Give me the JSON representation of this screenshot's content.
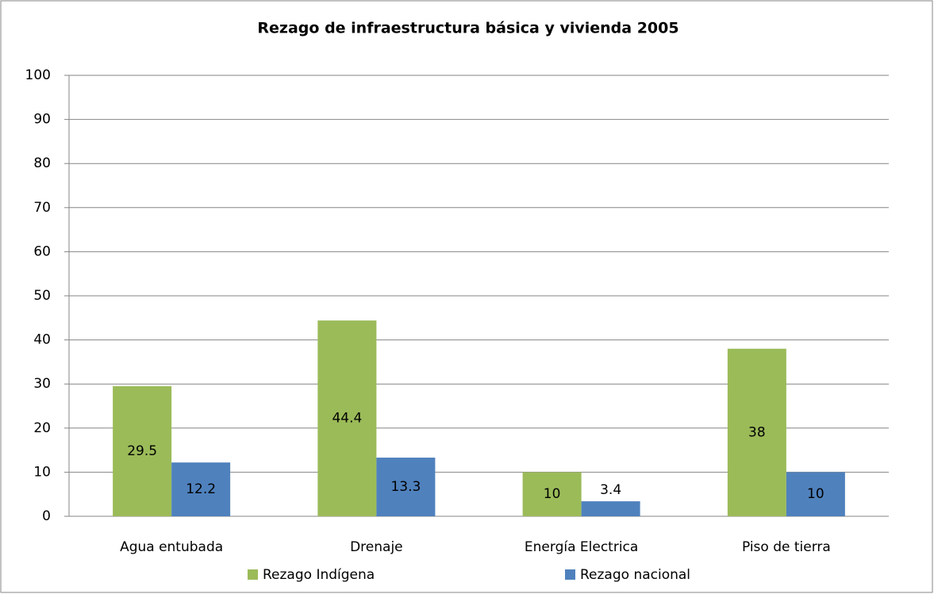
{
  "chart_data": {
    "type": "bar",
    "title": "Rezago de infraestructura básica y vivienda 2005",
    "categories": [
      "Agua entubada",
      "Drenaje",
      "Energía Electrica",
      "Piso de tierra"
    ],
    "series": [
      {
        "name": "Rezago Indígena",
        "color": "#9bbb59",
        "values": [
          29.5,
          44.4,
          10,
          38
        ]
      },
      {
        "name": "Rezago nacional",
        "color": "#4f81bd",
        "values": [
          12.2,
          13.3,
          3.4,
          10
        ]
      }
    ],
    "ylim": [
      0,
      100
    ],
    "yticks": [
      0,
      10,
      20,
      30,
      40,
      50,
      60,
      70,
      80,
      90,
      100
    ],
    "grid": true,
    "legend": "bottom"
  }
}
